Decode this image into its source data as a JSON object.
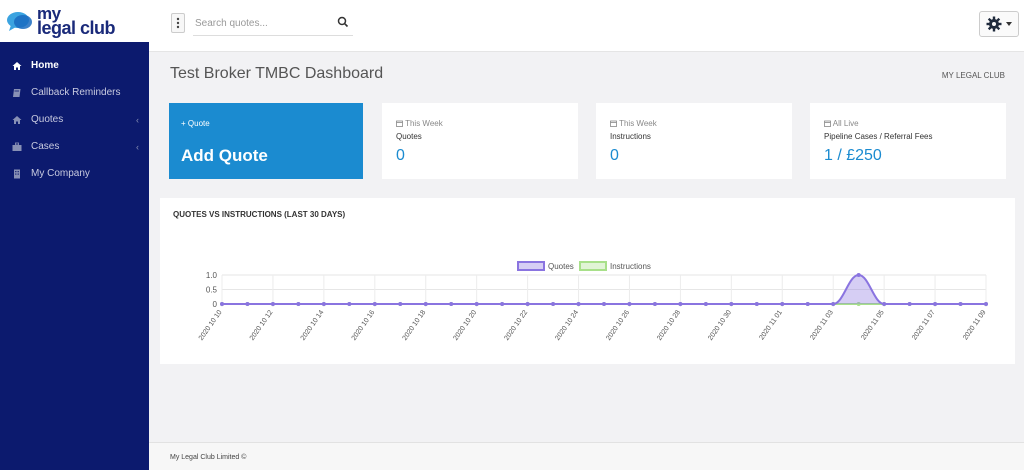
{
  "brand": {
    "line1": "my",
    "line2": "legal club"
  },
  "search": {
    "placeholder": "Search quotes..."
  },
  "sidebar": {
    "items": [
      {
        "label": "Home",
        "icon": "home-icon",
        "active": true,
        "has_submenu": false
      },
      {
        "label": "Callback Reminders",
        "icon": "book-icon",
        "active": false,
        "has_submenu": false
      },
      {
        "label": "Quotes",
        "icon": "home-icon",
        "active": false,
        "has_submenu": true
      },
      {
        "label": "Cases",
        "icon": "briefcase-icon",
        "active": false,
        "has_submenu": true
      },
      {
        "label": "My Company",
        "icon": "building-icon",
        "active": false,
        "has_submenu": false
      }
    ]
  },
  "page": {
    "title": "Test Broker TMBC Dashboard",
    "breadcrumb": "MY LEGAL CLUB"
  },
  "cards": {
    "add_quote": {
      "small": "+ Quote",
      "big": "Add Quote"
    },
    "quotes": {
      "tag": "This Week",
      "label": "Quotes",
      "value": "0"
    },
    "instructions": {
      "tag": "This Week",
      "label": "Instructions",
      "value": "0"
    },
    "pipeline": {
      "tag": "All Live",
      "label": "Pipeline Cases / Referral Fees",
      "value": "1 / £250"
    }
  },
  "chart": {
    "title": "QUOTES VS INSTRUCTIONS (LAST 30 DAYS)"
  },
  "chart_data": {
    "type": "area",
    "title": "QUOTES VS INSTRUCTIONS (LAST 30 DAYS)",
    "x_tick_labels": [
      "2020 10 10",
      "2020 10 12",
      "2020 10 14",
      "2020 10 16",
      "2020 10 18",
      "2020 10 20",
      "2020 10 22",
      "2020 10 24",
      "2020 10 26",
      "2020 10 28",
      "2020 10 30",
      "2020 11 01",
      "2020 11 03",
      "2020 11 05",
      "2020 11 07",
      "2020 11 09"
    ],
    "y_tick_labels": [
      "1.0",
      "0.5",
      "0"
    ],
    "ylim": [
      0,
      1
    ],
    "x": [
      "2020 10 10",
      "2020 10 11",
      "2020 10 12",
      "2020 10 13",
      "2020 10 14",
      "2020 10 15",
      "2020 10 16",
      "2020 10 17",
      "2020 10 18",
      "2020 10 19",
      "2020 10 20",
      "2020 10 21",
      "2020 10 22",
      "2020 10 23",
      "2020 10 24",
      "2020 10 25",
      "2020 10 26",
      "2020 10 27",
      "2020 10 28",
      "2020 10 29",
      "2020 10 30",
      "2020 10 31",
      "2020 11 01",
      "2020 11 02",
      "2020 11 03",
      "2020 11 04",
      "2020 11 05",
      "2020 11 06",
      "2020 11 07",
      "2020 11 08",
      "2020 11 09"
    ],
    "series": [
      {
        "name": "Quotes",
        "color": "#8a74e0",
        "values": [
          0,
          0,
          0,
          0,
          0,
          0,
          0,
          0,
          0,
          0,
          0,
          0,
          0,
          0,
          0,
          0,
          0,
          0,
          0,
          0,
          0,
          0,
          0,
          0,
          0,
          1,
          0,
          0,
          0,
          0,
          0
        ]
      },
      {
        "name": "Instructions",
        "color": "#a8e08a",
        "values": [
          0,
          0,
          0,
          0,
          0,
          0,
          0,
          0,
          0,
          0,
          0,
          0,
          0,
          0,
          0,
          0,
          0,
          0,
          0,
          0,
          0,
          0,
          0,
          0,
          0,
          0,
          0,
          0,
          0,
          0,
          0
        ]
      }
    ],
    "legend_position": "top-center",
    "grid": true
  },
  "footer": {
    "text": "My Legal Club Limited ©"
  },
  "colors": {
    "sidebar": "#0c1a6e",
    "accent": "#1b8bd0",
    "quotes": "#8a74e0",
    "instructions": "#a8e08a"
  }
}
